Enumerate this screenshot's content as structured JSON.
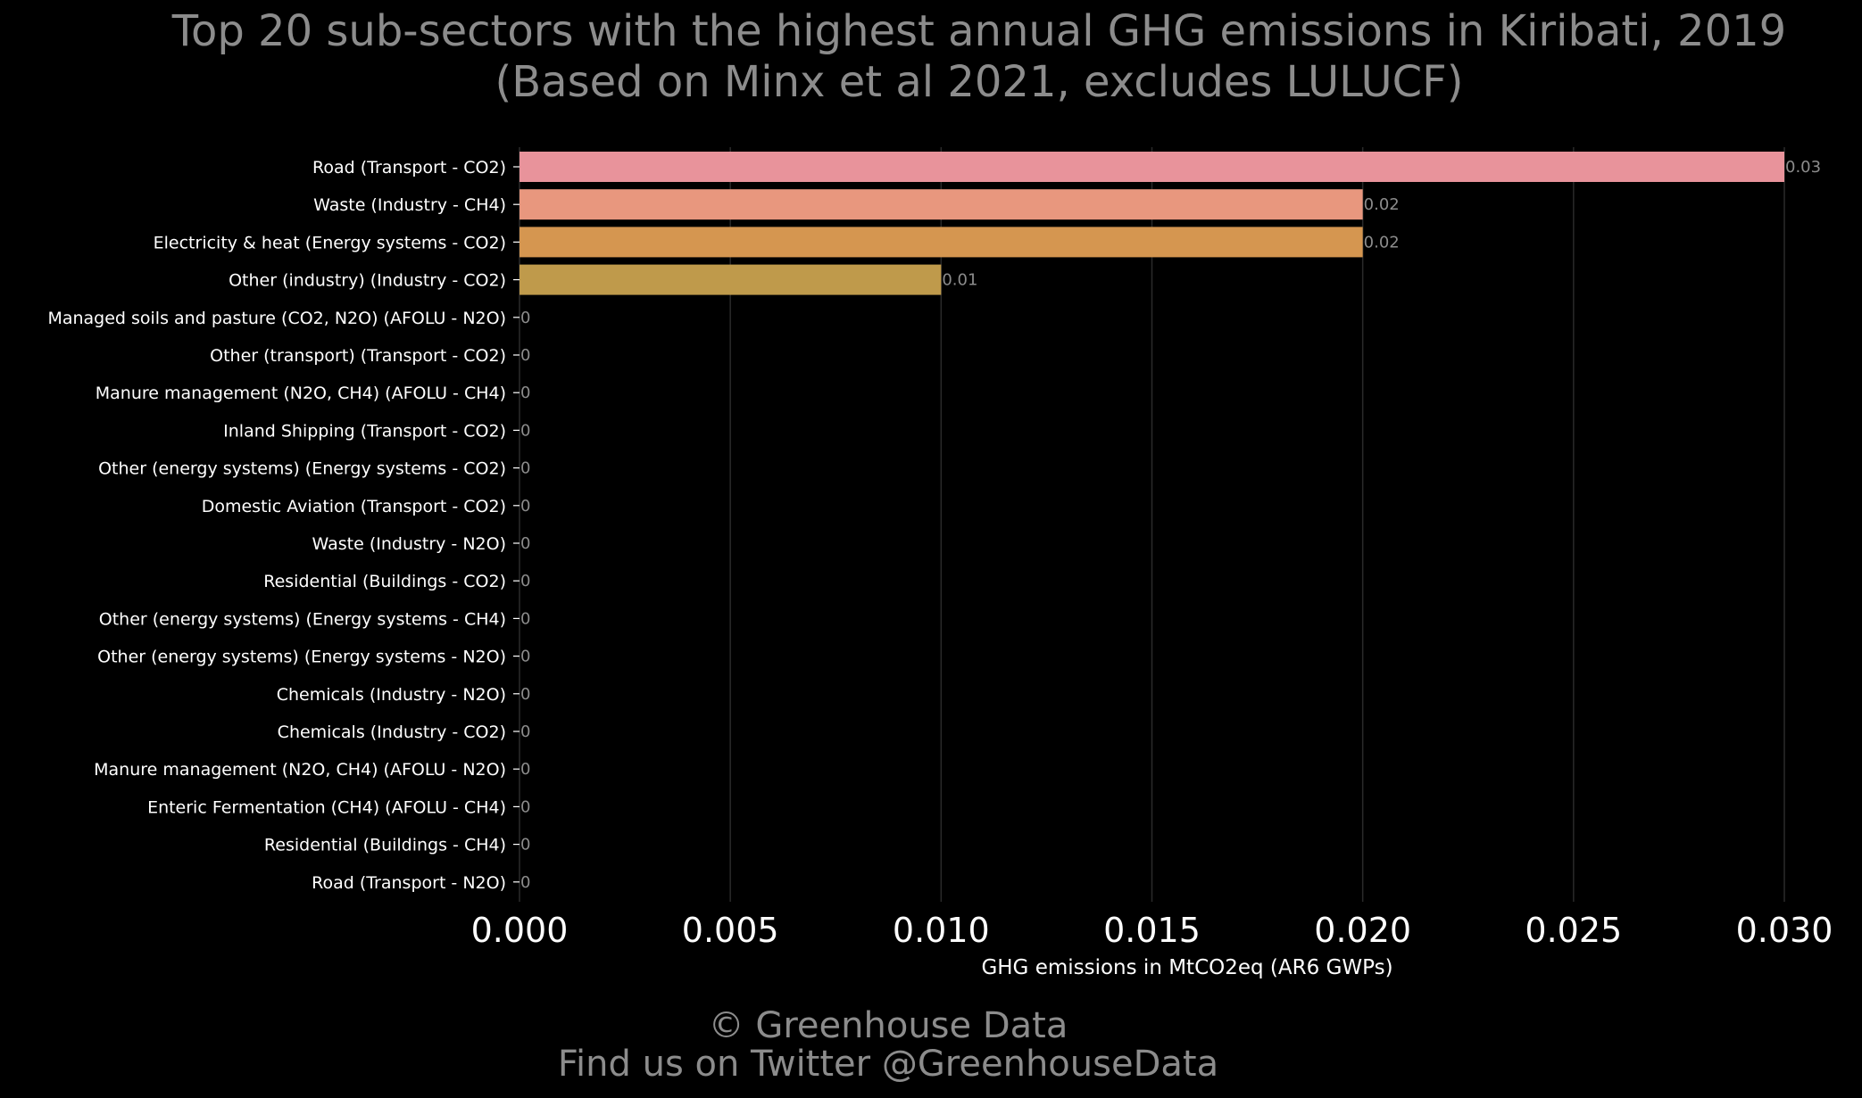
{
  "chart_data": {
    "type": "bar",
    "orientation": "horizontal",
    "title_lines": [
      "Top 20 sub-sectors with the highest annual GHG emissions in Kiribati, 2019",
      "(Based on Minx et al 2021, excludes LULUCF)"
    ],
    "xlabel": "GHG emissions in MtCO2eq (AR6 GWPs)",
    "ylabel": "",
    "xlim": [
      0,
      0.03
    ],
    "xticks": [
      "0.000",
      "0.005",
      "0.010",
      "0.015",
      "0.020",
      "0.025",
      "0.030"
    ],
    "grid": "vertical",
    "categories": [
      "Road (Transport - CO2)",
      "Waste (Industry - CH4)",
      "Electricity & heat (Energy systems - CO2)",
      "Other (industry) (Industry - CO2)",
      "Managed soils and pasture (CO2, N2O) (AFOLU - N2O)",
      "Other (transport) (Transport - CO2)",
      "Manure management (N2O, CH4) (AFOLU - CH4)",
      "Inland Shipping (Transport - CO2)",
      "Other (energy systems) (Energy systems - CO2)",
      "Domestic Aviation (Transport - CO2)",
      "Waste (Industry - N2O)",
      "Residential (Buildings - CO2)",
      "Other (energy systems) (Energy systems - CH4)",
      "Other (energy systems) (Energy systems - N2O)",
      "Chemicals (Industry - N2O)",
      "Chemicals (Industry - CO2)",
      "Manure management (N2O, CH4) (AFOLU - N2O)",
      "Enteric Fermentation (CH4) (AFOLU - CH4)",
      "Residential (Buildings - CH4)",
      "Road (Transport - N2O)"
    ],
    "values": [
      0.03,
      0.02,
      0.02,
      0.01,
      0,
      0,
      0,
      0,
      0,
      0,
      0,
      0,
      0,
      0,
      0,
      0,
      0,
      0,
      0,
      0
    ],
    "value_labels": [
      "0.03",
      "0.02",
      "0.02",
      "0.01",
      "0",
      "0",
      "0",
      "0",
      "0",
      "0",
      "0",
      "0",
      "0",
      "0",
      "0",
      "0",
      "0",
      "0",
      "0",
      "0"
    ],
    "colors": [
      "#e8939b",
      "#e8977e",
      "#d59650",
      "#bf9a4b",
      "#a8a04a",
      "#91a64a",
      "#79ab4f",
      "#5fb05e",
      "#4bb276",
      "#43b38c",
      "#44b3a0",
      "#4ab1b2",
      "#56aec3",
      "#68aad3",
      "#7ea4de",
      "#949de3",
      "#aa96e2",
      "#bd90da",
      "#cd8ccb",
      "#da8bb7"
    ]
  },
  "footer": {
    "line1": "© Greenhouse Data",
    "line2": "Find us on Twitter @GreenhouseData"
  },
  "style": {
    "background": "#000000",
    "title_color": "#8c8c8c",
    "label_color": "#ffffff",
    "grid_color": "#2a2a2a"
  }
}
